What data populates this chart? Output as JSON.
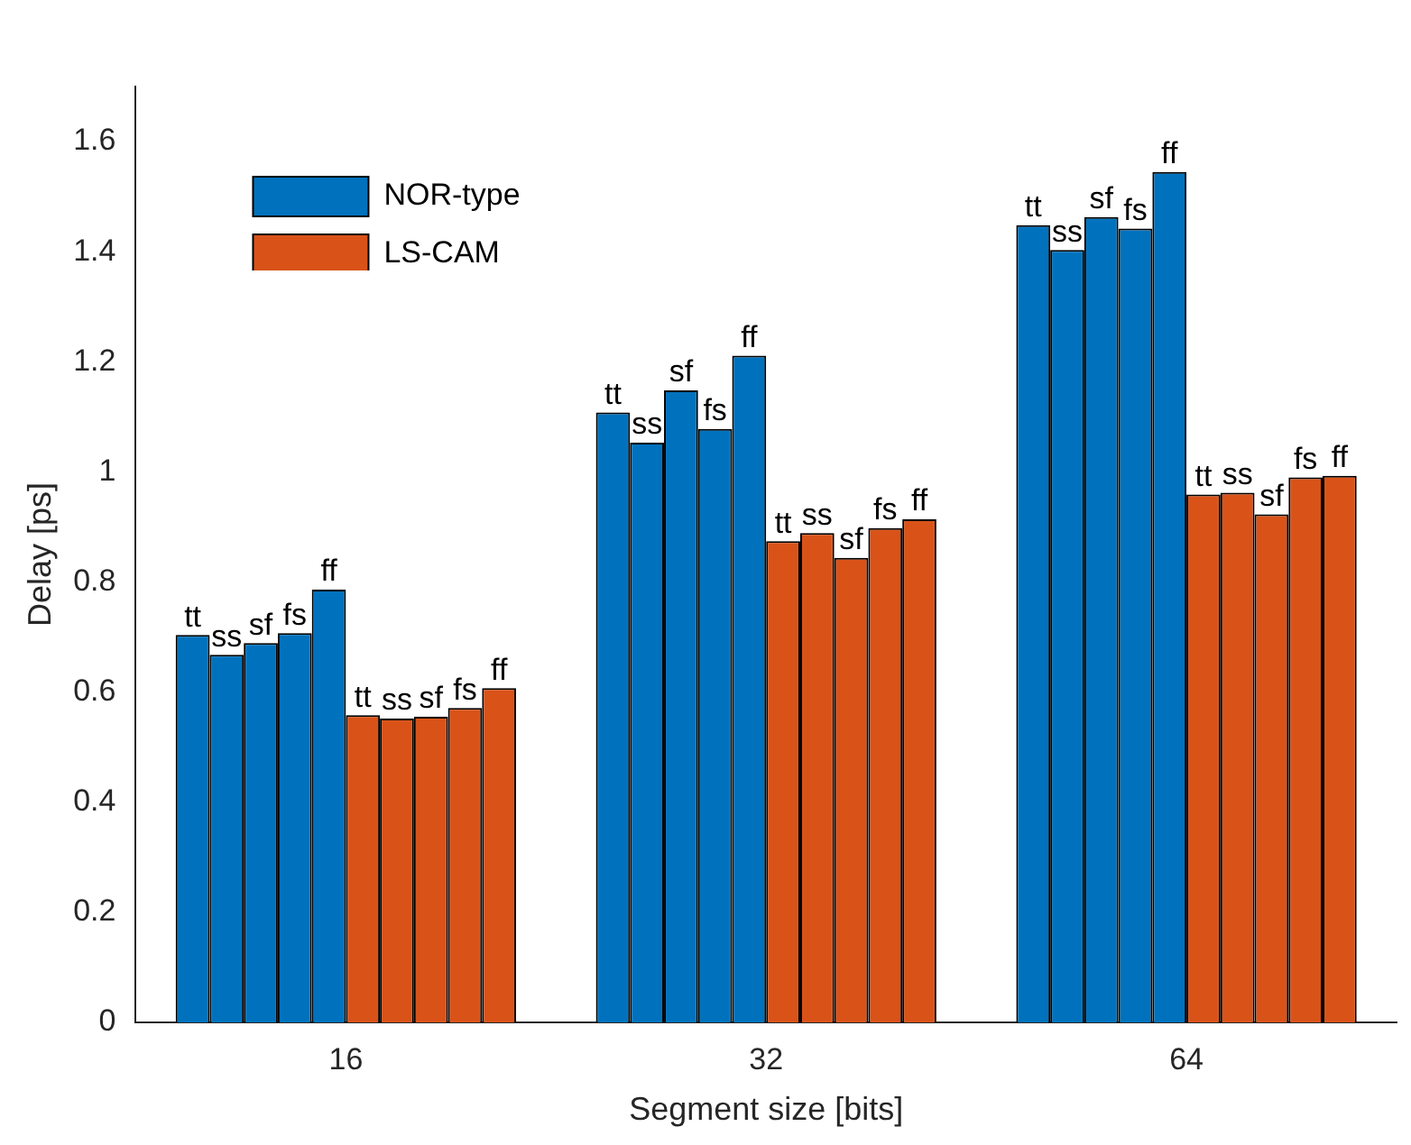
{
  "chart_data": {
    "type": "bar",
    "xlabel": "Segment size [bits]",
    "ylabel": "Delay [ps]",
    "categories": [
      "16",
      "32",
      "64"
    ],
    "series": [
      {
        "name": "NOR-type",
        "color": "#0072bd",
        "values": [
          0.704,
          1.108,
          1.448
        ],
        "value_labels": [
          "tt",
          "tt",
          "tt"
        ]
      },
      {
        "color": "#0072bd",
        "values": [
          0.668,
          1.053,
          1.403
        ],
        "value_labels": [
          "ss",
          "ss",
          "ss"
        ]
      },
      {
        "color": "#0072bd",
        "values": [
          0.689,
          1.148,
          1.463
        ],
        "value_labels": [
          "sf",
          "sf",
          "sf"
        ]
      },
      {
        "color": "#0072bd",
        "values": [
          0.707,
          1.078,
          1.442
        ],
        "value_labels": [
          "fs",
          "fs",
          "fs"
        ]
      },
      {
        "color": "#0072bd",
        "values": [
          0.786,
          1.211,
          1.545
        ],
        "value_labels": [
          "ff",
          "ff",
          "ff"
        ]
      },
      {
        "name": "LS-CAM",
        "color": "#d95319",
        "values": [
          0.558,
          0.874,
          0.959
        ],
        "value_labels": [
          "tt",
          "tt",
          "tt"
        ]
      },
      {
        "color": "#d95319",
        "values": [
          0.552,
          0.889,
          0.962
        ],
        "value_labels": [
          "ss",
          "ss",
          "ss"
        ]
      },
      {
        "color": "#d95319",
        "values": [
          0.555,
          0.844,
          0.923
        ],
        "value_labels": [
          "sf",
          "sf",
          "sf"
        ]
      },
      {
        "color": "#d95319",
        "values": [
          0.571,
          0.898,
          0.99
        ],
        "value_labels": [
          "fs",
          "fs",
          "fs"
        ]
      },
      {
        "color": "#d95319",
        "values": [
          0.607,
          0.914,
          0.993
        ],
        "value_labels": [
          "ff",
          "ff",
          "ff"
        ]
      }
    ],
    "ylim": [
      0,
      1.7
    ],
    "yticks": [
      0,
      0.2,
      0.4,
      0.6,
      0.8,
      1,
      1.2,
      1.4,
      1.6
    ],
    "grid": false,
    "legend": "top left"
  }
}
